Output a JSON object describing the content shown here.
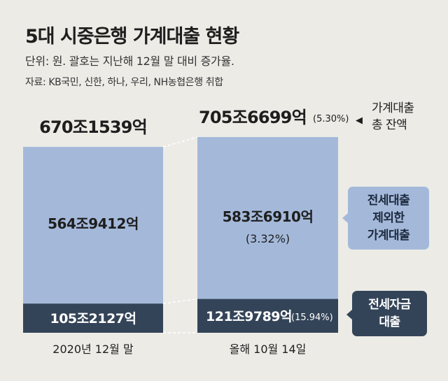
{
  "header": {
    "title": "5대 시중은행 가계대출 현황",
    "subtitle": "단위: 원. 괄호는 지난해 12월 말 대비 증가율.",
    "source": "자료: KB국민, 신한, 하나, 우리, NH농협은행 취합"
  },
  "colors": {
    "background": "#ecebe6",
    "excluding_jeonse": "#a4b9da",
    "jeonse": "#344458",
    "text": "#1e1e1e"
  },
  "chart_data": {
    "type": "bar",
    "stacked": true,
    "categories": [
      "2020년 12월 말",
      "올해 10월 14일"
    ],
    "unit": "조원",
    "series": [
      {
        "name": "전세자금 대출",
        "values": [
          105.2127,
          121.9789
        ],
        "labels": [
          "105조2127억",
          "121조9789억"
        ],
        "growth_labels": [
          "",
          "(15.94%)"
        ]
      },
      {
        "name": "전세대출 제외한 가계대출",
        "values": [
          564.9412,
          583.691
        ],
        "labels": [
          "564조9412억",
          "583조6910억"
        ],
        "growth_labels": [
          "",
          "(3.32%)"
        ]
      }
    ],
    "totals": {
      "values": [
        670.1539,
        705.6699
      ],
      "labels": [
        "670조1539억",
        "705조6699억"
      ],
      "growth_labels": [
        "",
        "(5.30%)"
      ]
    },
    "ylim": [
      0,
      705.6699
    ]
  },
  "annotations": {
    "total_note_line1": "가계대출",
    "total_note_line2": "총 잔액",
    "total_arrow": "◀",
    "callout_light": [
      "전세대출",
      "제외한",
      "가계대출"
    ],
    "callout_dark": [
      "전세자금",
      "대출"
    ]
  }
}
